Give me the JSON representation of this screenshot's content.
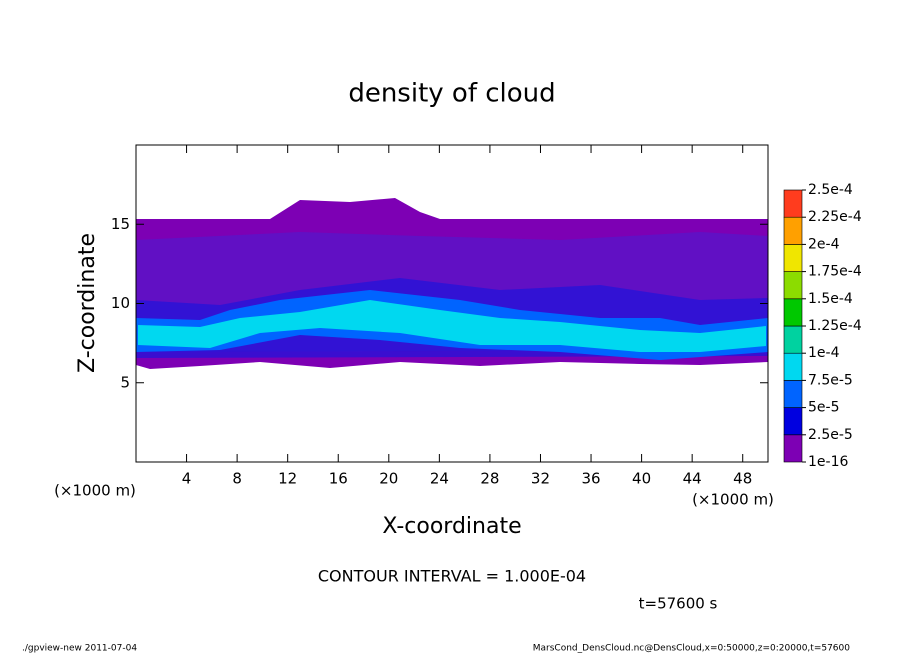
{
  "chart_data": {
    "type": "contour",
    "title": "density of cloud",
    "xlabel": "X-coordinate",
    "ylabel": "Z-coordinate",
    "xunit": "(×1000 m)",
    "xlim": [
      0,
      50
    ],
    "ylim": [
      0,
      20
    ],
    "xticks": [
      4,
      8,
      12,
      16,
      20,
      24,
      28,
      32,
      36,
      40,
      44,
      48
    ],
    "yticks": [
      5,
      10,
      15
    ],
    "levels": [
      {
        "value": 1e-16,
        "label": "1e-16"
      },
      {
        "value": 2.5e-05,
        "label": "2.5e-5"
      },
      {
        "value": 5e-05,
        "label": "5e-5"
      },
      {
        "value": 7.5e-05,
        "label": "7.5e-5"
      },
      {
        "value": 0.0001,
        "label": "1e-4"
      },
      {
        "value": 0.000125,
        "label": "1.25e-4"
      },
      {
        "value": 0.00015,
        "label": "1.5e-4"
      },
      {
        "value": 0.000175,
        "label": "1.75e-4"
      },
      {
        "value": 0.0002,
        "label": "2e-4"
      },
      {
        "value": 0.000225,
        "label": "2.25e-4"
      },
      {
        "value": 0.00025,
        "label": "2.5e-4"
      }
    ],
    "colors": [
      "#7d00b4",
      "#0000e0",
      "#0064ff",
      "#00d8f0",
      "#00d2a0",
      "#00c800",
      "#8cdc00",
      "#f0e600",
      "#ffa000",
      "#ff3c1e",
      "#ff9c9c"
    ],
    "annotation": "CONTOUR INTERVAL = 1.000E-04",
    "time_label": "t=57600 s",
    "footer_left": "./gpview-new  2011-07-04",
    "footer_right": "MarsCond_DensCloud.nc@DensCloud,x=0:50000,z=0:20000,t=57600"
  }
}
